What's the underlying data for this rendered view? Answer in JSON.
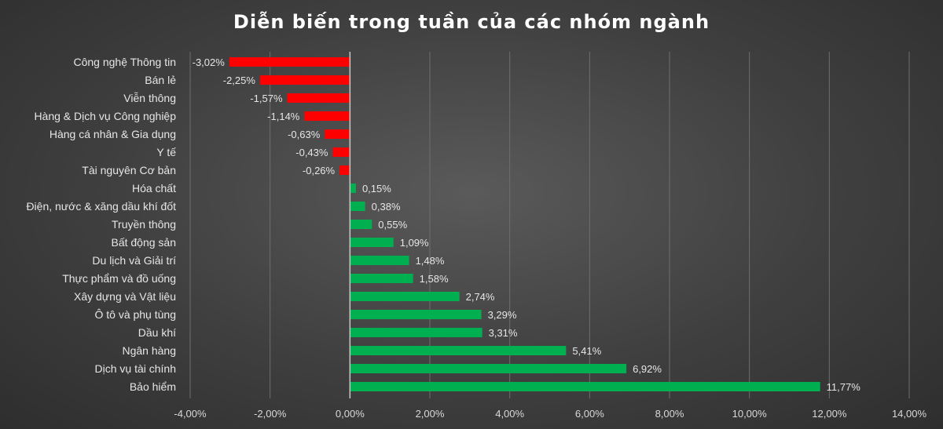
{
  "chart_data": {
    "type": "bar",
    "orientation": "horizontal",
    "title": "Diễn biến trong tuần của các nhóm ngành",
    "categories": [
      "Công nghệ Thông tin",
      "Bán lẻ",
      "Viễn thông",
      "Hàng & Dịch vụ Công nghiệp",
      "Hàng cá nhân & Gia dụng",
      "Y tế",
      "Tài nguyên Cơ bản",
      "Hóa chất",
      "Điện, nước & xăng dầu khí đốt",
      "Truyền thông",
      "Bất động sản",
      "Du lịch và Giải trí",
      "Thực phẩm và đồ uống",
      "Xây dựng và Vật liệu",
      "Ô tô và phụ tùng",
      "Dầu khí",
      "Ngân hàng",
      "Dịch vụ tài chính",
      "Bảo hiểm"
    ],
    "values": [
      -3.02,
      -2.25,
      -1.57,
      -1.14,
      -0.63,
      -0.43,
      -0.26,
      0.15,
      0.38,
      0.55,
      1.09,
      1.48,
      1.58,
      2.74,
      3.29,
      3.31,
      5.41,
      6.92,
      11.77
    ],
    "data_labels": [
      "-3,02%",
      "-2,25%",
      "-1,57%",
      "-1,14%",
      "-0,63%",
      "-0,43%",
      "-0,26%",
      "0,15%",
      "0,38%",
      "0,55%",
      "1,09%",
      "1,48%",
      "1,58%",
      "2,74%",
      "3,29%",
      "3,31%",
      "5,41%",
      "6,92%",
      "11,77%"
    ],
    "xlim": [
      -4,
      14
    ],
    "x_ticks": [
      -4,
      -2,
      0,
      2,
      4,
      6,
      8,
      10,
      12,
      14
    ],
    "x_tick_labels": [
      "-4,00%",
      "-2,00%",
      "0,00%",
      "2,00%",
      "4,00%",
      "6,00%",
      "8,00%",
      "10,00%",
      "12,00%",
      "14,00%"
    ],
    "grid": true,
    "colors": {
      "negative": "#ff0000",
      "positive": "#00b050",
      "grid": "#6e6e6e",
      "zero_line": "#c8c8c8"
    }
  }
}
